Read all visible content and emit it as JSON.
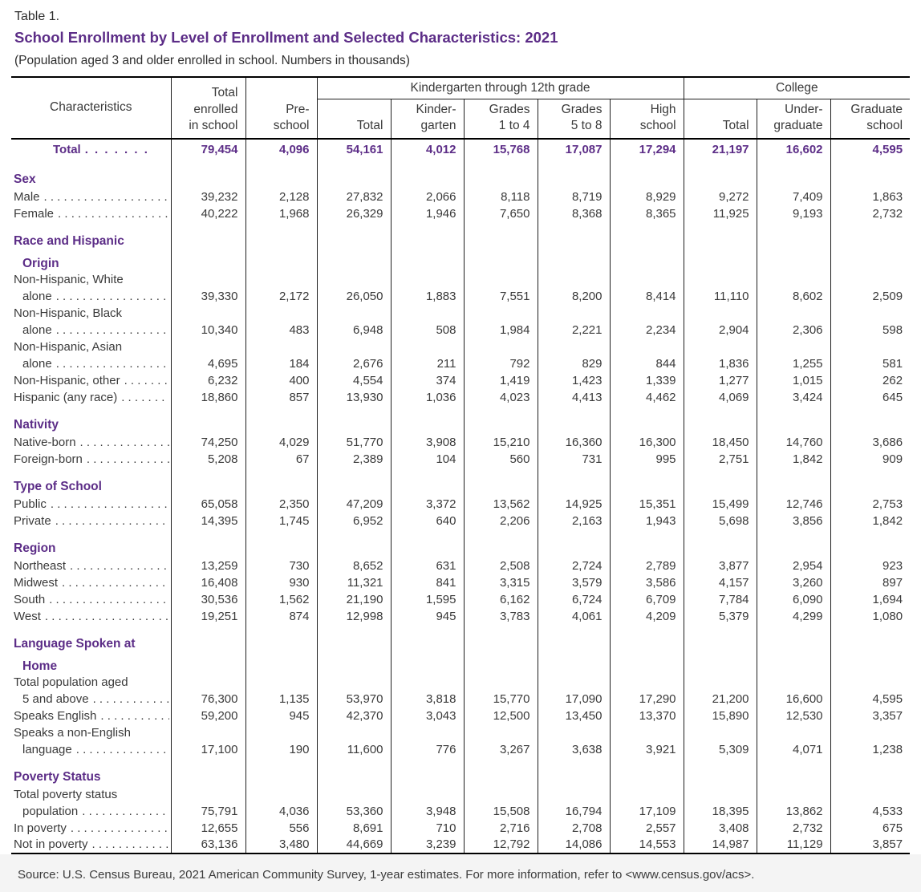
{
  "page": {
    "table_label": "Table 1.",
    "title": "School Enrollment by Level of Enrollment and Selected Characteristics: 2021",
    "subtitle": "(Population aged 3 and older enrolled in school. Numbers in thousands)",
    "source": "Source: U.S. Census Bureau, 2021 American Community Survey, 1-year estimates. For more information, refer to <www.census.gov/acs>."
  },
  "colors": {
    "accent_purple": "#5c2d87",
    "body_text": "#3a3a3a",
    "footer_background": "#f4f4f4"
  },
  "leader": ". . . . . . . . . . . . . . . . . . . . . . . . . . . . . . . . . . . . . . . .",
  "header": {
    "characteristics": "Characteristics",
    "total_enrolled": "Total\nenrolled\nin school",
    "preschool": "Pre-\nschool",
    "k12_group": "Kindergarten through 12th grade",
    "college_group": "College",
    "k12_cols": [
      "Total",
      "Kinder-\ngarten",
      "Grades\n1 to 4",
      "Grades\n5 to 8",
      "High\nschool"
    ],
    "college_cols": [
      "Total",
      "Under-\ngraduate",
      "Graduate\nschool"
    ]
  },
  "rows": [
    {
      "type": "total",
      "label": "Total",
      "dots": true,
      "values": [
        "79,454",
        "4,096",
        "54,161",
        "4,012",
        "15,768",
        "17,087",
        "17,294",
        "21,197",
        "16,602",
        "4,595"
      ]
    },
    {
      "type": "spacer"
    },
    {
      "type": "section",
      "label": "Sex"
    },
    {
      "type": "data",
      "label": "Male",
      "dots": true,
      "values": [
        "39,232",
        "2,128",
        "27,832",
        "2,066",
        "8,118",
        "8,719",
        "8,929",
        "9,272",
        "7,409",
        "1,863"
      ]
    },
    {
      "type": "data",
      "label": "Female",
      "dots": true,
      "values": [
        "40,222",
        "1,968",
        "26,329",
        "1,946",
        "7,650",
        "8,368",
        "8,365",
        "11,925",
        "9,193",
        "2,732"
      ]
    },
    {
      "type": "spacer"
    },
    {
      "type": "section",
      "label": "Race and Hispanic"
    },
    {
      "type": "section2",
      "label": "Origin"
    },
    {
      "type": "labelline",
      "label": "Non-Hispanic, White"
    },
    {
      "type": "data",
      "label": "alone",
      "indent": true,
      "dots": true,
      "values": [
        "39,330",
        "2,172",
        "26,050",
        "1,883",
        "7,551",
        "8,200",
        "8,414",
        "11,110",
        "8,602",
        "2,509"
      ]
    },
    {
      "type": "labelline",
      "label": "Non-Hispanic, Black"
    },
    {
      "type": "data",
      "label": "alone",
      "indent": true,
      "dots": true,
      "values": [
        "10,340",
        "483",
        "6,948",
        "508",
        "1,984",
        "2,221",
        "2,234",
        "2,904",
        "2,306",
        "598"
      ]
    },
    {
      "type": "labelline",
      "label": "Non-Hispanic, Asian"
    },
    {
      "type": "data",
      "label": "alone",
      "indent": true,
      "dots": true,
      "values": [
        "4,695",
        "184",
        "2,676",
        "211",
        "792",
        "829",
        "844",
        "1,836",
        "1,255",
        "581"
      ]
    },
    {
      "type": "data",
      "label": "Non-Hispanic, other",
      "dots": true,
      "values": [
        "6,232",
        "400",
        "4,554",
        "374",
        "1,419",
        "1,423",
        "1,339",
        "1,277",
        "1,015",
        "262"
      ]
    },
    {
      "type": "data",
      "label": "Hispanic (any race)",
      "dots": true,
      "values": [
        "18,860",
        "857",
        "13,930",
        "1,036",
        "4,023",
        "4,413",
        "4,462",
        "4,069",
        "3,424",
        "645"
      ]
    },
    {
      "type": "spacer"
    },
    {
      "type": "section",
      "label": "Nativity"
    },
    {
      "type": "data",
      "label": "Native-born",
      "dots": true,
      "values": [
        "74,250",
        "4,029",
        "51,770",
        "3,908",
        "15,210",
        "16,360",
        "16,300",
        "18,450",
        "14,760",
        "3,686"
      ]
    },
    {
      "type": "data",
      "label": "Foreign-born",
      "dots": true,
      "values": [
        "5,208",
        "67",
        "2,389",
        "104",
        "560",
        "731",
        "995",
        "2,751",
        "1,842",
        "909"
      ]
    },
    {
      "type": "spacer"
    },
    {
      "type": "section",
      "label": "Type of School"
    },
    {
      "type": "data",
      "label": "Public",
      "dots": true,
      "values": [
        "65,058",
        "2,350",
        "47,209",
        "3,372",
        "13,562",
        "14,925",
        "15,351",
        "15,499",
        "12,746",
        "2,753"
      ]
    },
    {
      "type": "data",
      "label": "Private",
      "dots": true,
      "values": [
        "14,395",
        "1,745",
        "6,952",
        "640",
        "2,206",
        "2,163",
        "1,943",
        "5,698",
        "3,856",
        "1,842"
      ]
    },
    {
      "type": "spacer"
    },
    {
      "type": "section",
      "label": "Region"
    },
    {
      "type": "data",
      "label": "Northeast",
      "dots": true,
      "values": [
        "13,259",
        "730",
        "8,652",
        "631",
        "2,508",
        "2,724",
        "2,789",
        "3,877",
        "2,954",
        "923"
      ]
    },
    {
      "type": "data",
      "label": "Midwest",
      "dots": true,
      "values": [
        "16,408",
        "930",
        "11,321",
        "841",
        "3,315",
        "3,579",
        "3,586",
        "4,157",
        "3,260",
        "897"
      ]
    },
    {
      "type": "data",
      "label": "South",
      "dots": true,
      "values": [
        "30,536",
        "1,562",
        "21,190",
        "1,595",
        "6,162",
        "6,724",
        "6,709",
        "7,784",
        "6,090",
        "1,694"
      ]
    },
    {
      "type": "data",
      "label": "West",
      "dots": true,
      "values": [
        "19,251",
        "874",
        "12,998",
        "945",
        "3,783",
        "4,061",
        "4,209",
        "5,379",
        "4,299",
        "1,080"
      ]
    },
    {
      "type": "spacer"
    },
    {
      "type": "section",
      "label": "Language Spoken at"
    },
    {
      "type": "section2",
      "label": "Home"
    },
    {
      "type": "labelline",
      "label": "Total population aged"
    },
    {
      "type": "data",
      "label": "5 and above",
      "indent": true,
      "dots": true,
      "values": [
        "76,300",
        "1,135",
        "53,970",
        "3,818",
        "15,770",
        "17,090",
        "17,290",
        "21,200",
        "16,600",
        "4,595"
      ]
    },
    {
      "type": "data",
      "label": "Speaks English",
      "dots": true,
      "values": [
        "59,200",
        "945",
        "42,370",
        "3,043",
        "12,500",
        "13,450",
        "13,370",
        "15,890",
        "12,530",
        "3,357"
      ]
    },
    {
      "type": "labelline",
      "label": "Speaks a non-English"
    },
    {
      "type": "data",
      "label": "language",
      "indent": true,
      "dots": true,
      "values": [
        "17,100",
        "190",
        "11,600",
        "776",
        "3,267",
        "3,638",
        "3,921",
        "5,309",
        "4,071",
        "1,238"
      ]
    },
    {
      "type": "spacer"
    },
    {
      "type": "section",
      "label": "Poverty Status"
    },
    {
      "type": "labelline",
      "label": "Total poverty status"
    },
    {
      "type": "data",
      "label": "population",
      "indent": true,
      "dots": true,
      "values": [
        "75,791",
        "4,036",
        "53,360",
        "3,948",
        "15,508",
        "16,794",
        "17,109",
        "18,395",
        "13,862",
        "4,533"
      ]
    },
    {
      "type": "data",
      "label": "In poverty",
      "dots": true,
      "values": [
        "12,655",
        "556",
        "8,691",
        "710",
        "2,716",
        "2,708",
        "2,557",
        "3,408",
        "2,732",
        "675"
      ]
    },
    {
      "type": "data",
      "label": "Not in poverty",
      "dots": true,
      "values": [
        "63,136",
        "3,480",
        "44,669",
        "3,239",
        "12,792",
        "14,086",
        "14,553",
        "14,987",
        "11,129",
        "3,857"
      ]
    }
  ]
}
